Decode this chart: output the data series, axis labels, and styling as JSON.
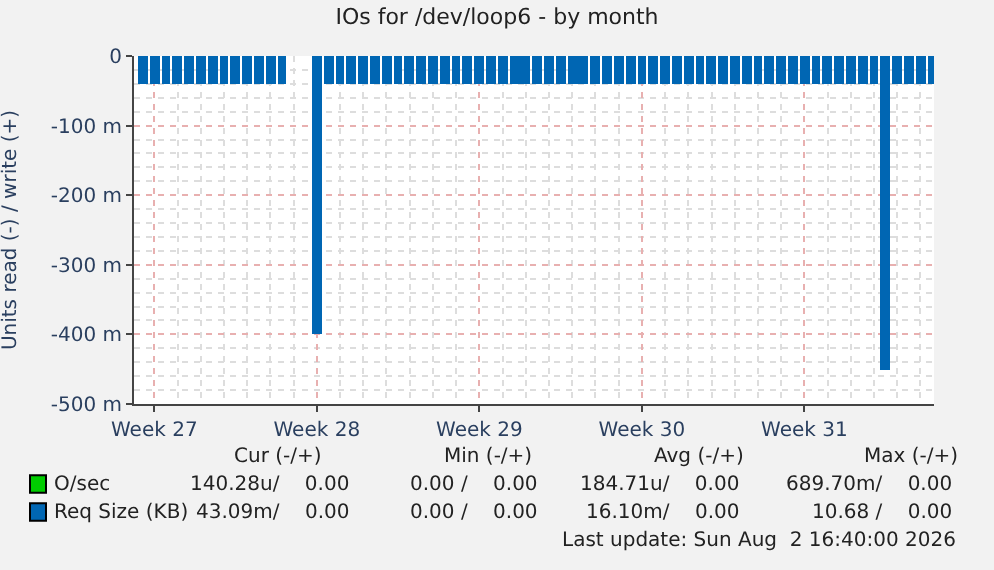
{
  "chart_data": {
    "type": "bar",
    "title": "IOs for /dev/loop6 - by month",
    "ylabel": "Units read (-) / write (+)",
    "xlim": [
      "2026-06-28T03:00",
      "2026-08-01T14:00"
    ],
    "xticks": [
      {
        "value": "2026-06-29",
        "label": "Week 27"
      },
      {
        "value": "2026-07-06",
        "label": "Week 28"
      },
      {
        "value": "2026-07-13",
        "label": "Week 29"
      },
      {
        "value": "2026-07-20",
        "label": "Week 30"
      },
      {
        "value": "2026-07-27",
        "label": "Week 31"
      }
    ],
    "ylim": [
      -500,
      0
    ],
    "yticks": [
      {
        "value": 0,
        "label": "0"
      },
      {
        "value": -100,
        "label": "-100 m"
      },
      {
        "value": -200,
        "label": "-200 m"
      },
      {
        "value": -300,
        "label": "-300 m"
      },
      {
        "value": -400,
        "label": "-400 m"
      },
      {
        "value": -500,
        "label": "-500 m"
      }
    ],
    "grid": true,
    "legend": "bottom left",
    "x": [
      "2026-06-28T12:00",
      "2026-06-29T00:00",
      "2026-06-29T12:00",
      "2026-06-30T00:00",
      "2026-06-30T12:00",
      "2026-07-01T00:00",
      "2026-07-01T12:00",
      "2026-07-02T00:00",
      "2026-07-02T12:00",
      "2026-07-03T00:00",
      "2026-07-03T12:00",
      "2026-07-04T00:00",
      "2026-07-04T12:00",
      "2026-07-06T00:00",
      "2026-07-06T12:00",
      "2026-07-07T00:00",
      "2026-07-07T12:00",
      "2026-07-08T00:00",
      "2026-07-08T12:00",
      "2026-07-09T00:00",
      "2026-07-09T12:00",
      "2026-07-10T00:00",
      "2026-07-10T12:00",
      "2026-07-11T00:00",
      "2026-07-11T12:00",
      "2026-07-12T00:00",
      "2026-07-12T12:00",
      "2026-07-13T00:00",
      "2026-07-13T12:00",
      "2026-07-14T00:00",
      "2026-07-14T12:00",
      "2026-07-15T00:00",
      "2026-07-15T12:00",
      "2026-07-16T00:00",
      "2026-07-16T12:00",
      "2026-07-17T00:00",
      "2026-07-17T12:00",
      "2026-07-18T00:00",
      "2026-07-18T12:00",
      "2026-07-19T00:00",
      "2026-07-19T12:00",
      "2026-07-20T00:00",
      "2026-07-20T12:00",
      "2026-07-21T00:00",
      "2026-07-21T12:00",
      "2026-07-22T00:00",
      "2026-07-22T12:00",
      "2026-07-23T00:00",
      "2026-07-23T12:00",
      "2026-07-24T00:00",
      "2026-07-24T12:00",
      "2026-07-25T00:00",
      "2026-07-25T12:00",
      "2026-07-26T00:00",
      "2026-07-26T12:00",
      "2026-07-27T00:00",
      "2026-07-27T12:00",
      "2026-07-28T00:00",
      "2026-07-28T12:00",
      "2026-07-29T00:00",
      "2026-07-29T12:00",
      "2026-07-30T00:00",
      "2026-07-30T12:00",
      "2026-07-31T00:00",
      "2026-07-31T12:00",
      "2026-08-01T00:00",
      "2026-08-01T12:00"
    ],
    "series": [
      {
        "name": "O/sec",
        "color": "#00cc00",
        "values": [
          null,
          null,
          null,
          null,
          null,
          null,
          null,
          null,
          null,
          null,
          null,
          null,
          null,
          null,
          null,
          null,
          null,
          null,
          null,
          null,
          null,
          null,
          null,
          null,
          null,
          null,
          null,
          null,
          null,
          null,
          null,
          null,
          null,
          null,
          null,
          null,
          null,
          null,
          null,
          null,
          null,
          null,
          null,
          null,
          null,
          null,
          null,
          null,
          null,
          null,
          null,
          null,
          null,
          null,
          null,
          null,
          null,
          null,
          null,
          null,
          null,
          null,
          null,
          null,
          null,
          null,
          null
        ]
      },
      {
        "name": "Req Size (KB)",
        "color": "#0066b3",
        "values": [
          -40,
          -40,
          -40,
          -40,
          -40,
          -40,
          -40,
          -40,
          -40,
          -40,
          -40,
          -40,
          -40,
          -400,
          -40,
          -40,
          -40,
          -40,
          -40,
          -40,
          -40,
          -40,
          -40,
          -40,
          -40,
          -40,
          -40,
          -40,
          -40,
          -40,
          -40,
          -40,
          -40,
          -40,
          -40,
          -40,
          -40,
          -40,
          -40,
          -40,
          -40,
          -40,
          -40,
          -40,
          -40,
          -40,
          -40,
          -40,
          -40,
          -40,
          -40,
          -40,
          -40,
          -40,
          -40,
          -40,
          -40,
          -40,
          -40,
          -40,
          -40,
          -40,
          -450,
          -40,
          -40,
          -40,
          -40
        ]
      }
    ],
    "annotations": [
      "Cur (-/+)",
      "Min (-/+)",
      "Avg (-/+)",
      "Max (-/+)",
      "140.28u/    0.00",
      "0.00 /    0.00",
      "184.71u/    0.00",
      "689.70m/    0.00",
      "43.09m/    0.00",
      "0.00 /    0.00",
      "16.10m/    0.00",
      "10.68 /    0.00",
      "Last update: Sun Aug  2 16:40:00 2026"
    ]
  }
}
